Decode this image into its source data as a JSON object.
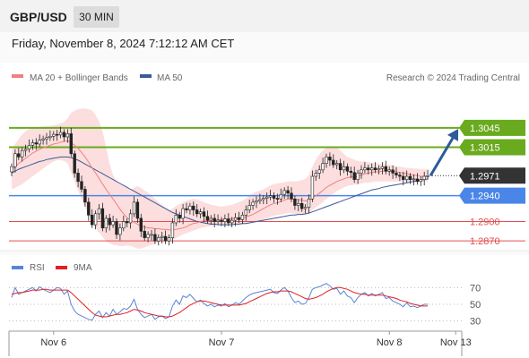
{
  "header": {
    "symbol": "GBP/USD",
    "interval": "30 MIN"
  },
  "timestamp": "Friday, November 8, 2024 7:12:12 AM CET",
  "credit": "Research © 2024 Trading Central",
  "colors": {
    "ma20": "#f08080",
    "ma50": "#3a5a98",
    "green": "#6aaa1e",
    "blue_level": "#4a86e8",
    "red_level": "#e05050",
    "band": "#fbd3d3",
    "arrow": "#2e5a9a",
    "rsi": "#5b84d6",
    "rsi_ma": "#e02020"
  },
  "chart_data": [
    {
      "type": "candlestick",
      "legend": [
        {
          "name": "MA 20 + Bollinger Bands",
          "color": "#f08080"
        },
        {
          "name": "MA 50",
          "color": "#3a5a98"
        }
      ],
      "y_range": [
        1.2855,
        1.311
      ],
      "x_ticks": [
        {
          "label": "Nov 6",
          "x": 12
        },
        {
          "label": "Nov 7",
          "x": 60
        },
        {
          "label": "Nov 8",
          "x": 108
        },
        {
          "label": "Nov 13",
          "x": 127
        }
      ],
      "levels": [
        {
          "label": "1.3045",
          "value": 1.3045,
          "type": "resistance",
          "color": "#6aaa1e"
        },
        {
          "label": "1.3015",
          "value": 1.3015,
          "type": "resistance",
          "color": "#6aaa1e"
        },
        {
          "label": "1.2971",
          "value": 1.2971,
          "type": "current",
          "color": "#333333"
        },
        {
          "label": "1.2940",
          "value": 1.294,
          "type": "pivot",
          "color": "#4a86e8"
        },
        {
          "label": "1.2900",
          "value": 1.29,
          "type": "support",
          "color": "#e05050"
        },
        {
          "label": "1.2870",
          "value": 1.287,
          "type": "support",
          "color": "#e05050"
        }
      ],
      "closes": [
        1.2985,
        1.3005,
        1.3,
        1.301,
        1.3012,
        1.3018,
        1.3022,
        1.302,
        1.3026,
        1.3028,
        1.303,
        1.3032,
        1.3035,
        1.3034,
        1.3038,
        1.3031,
        1.3036,
        1.3005,
        1.2975,
        1.2962,
        1.295,
        1.293,
        1.291,
        1.2895,
        1.2912,
        1.292,
        1.289,
        1.2905,
        1.2895,
        1.29,
        1.288,
        1.289,
        1.29,
        1.2898,
        1.2912,
        1.293,
        1.2905,
        1.2885,
        1.2875,
        1.288,
        1.288,
        1.287,
        1.2875,
        1.2877,
        1.287,
        1.2875,
        1.2898,
        1.291,
        1.2905,
        1.292,
        1.2918,
        1.2924,
        1.2918,
        1.2912,
        1.2915,
        1.2908,
        1.2902,
        1.2905,
        1.29,
        1.2902,
        1.29,
        1.2904,
        1.2898,
        1.2902,
        1.2906,
        1.2903,
        1.291,
        1.2918,
        1.2925,
        1.293,
        1.2932,
        1.2934,
        1.2936,
        1.2938,
        1.294,
        1.2936,
        1.2935,
        1.2942,
        1.2948,
        1.2944,
        1.2935,
        1.2925,
        1.2928,
        1.292,
        1.2922,
        1.2935,
        1.297,
        1.2975,
        1.298,
        1.299,
        1.3,
        1.2995,
        1.2988,
        1.299,
        1.298,
        1.2985,
        1.2978,
        1.2976,
        1.2965,
        1.2975,
        1.298,
        1.2983,
        1.298,
        1.2983,
        1.298,
        1.2982,
        1.2985,
        1.2978,
        1.298,
        1.2975,
        1.2972,
        1.297,
        1.2965,
        1.297,
        1.2965,
        1.2966,
        1.2962,
        1.2965,
        1.297,
        1.2971
      ],
      "ma20": [
        1.298,
        1.2985,
        1.299,
        1.2994,
        1.2998,
        1.3002,
        1.3006,
        1.3009,
        1.3012,
        1.3014,
        1.3016,
        1.3018,
        1.302,
        1.3021,
        1.3023,
        1.3024,
        1.3025,
        1.3022,
        1.3018,
        1.3013,
        1.3007,
        1.3,
        1.2992,
        1.2983,
        1.2975,
        1.2967,
        1.2958,
        1.295,
        1.2942,
        1.2935,
        1.2927,
        1.2919,
        1.2912,
        1.2906,
        1.2902,
        1.2899,
        1.2896,
        1.2893,
        1.2892,
        1.289,
        1.289,
        1.2889,
        1.2889,
        1.2888,
        1.2888,
        1.2887,
        1.2887,
        1.2888,
        1.2889,
        1.289,
        1.2892,
        1.2895,
        1.2897,
        1.2898,
        1.29,
        1.2901,
        1.2901,
        1.2902,
        1.2903,
        1.2903,
        1.2903,
        1.2904,
        1.2904,
        1.2905,
        1.2905,
        1.2905,
        1.2906,
        1.2907,
        1.2909,
        1.2911,
        1.2914,
        1.2917,
        1.292,
        1.2923,
        1.2926,
        1.2928,
        1.2929,
        1.2931,
        1.2933,
        1.2935,
        1.2935,
        1.2934,
        1.2934,
        1.2933,
        1.2932,
        1.2932,
        1.2936,
        1.294,
        1.2944,
        1.2948,
        1.2953,
        1.2956,
        1.2959,
        1.2962,
        1.2964,
        1.2966,
        1.2968,
        1.2969,
        1.2969,
        1.297,
        1.2972,
        1.2974,
        1.2975,
        1.2976,
        1.2977,
        1.2977,
        1.2978,
        1.2978,
        1.2978,
        1.2978,
        1.2977,
        1.2976,
        1.2975,
        1.2974,
        1.2973,
        1.2972,
        1.2971,
        1.297,
        1.297,
        1.297
      ],
      "upper": [
        1.301,
        1.302,
        1.3028,
        1.3035,
        1.304,
        1.3043,
        1.3045,
        1.3046,
        1.3047,
        1.3047,
        1.3048,
        1.3048,
        1.3049,
        1.305,
        1.3052,
        1.3054,
        1.306,
        1.3068,
        1.3072,
        1.3074,
        1.3075,
        1.3075,
        1.3074,
        1.3072,
        1.3065,
        1.3055,
        1.304,
        1.3015,
        1.299,
        1.2972,
        1.2962,
        1.2958,
        1.2955,
        1.2952,
        1.295,
        1.2952,
        1.2955,
        1.2952,
        1.2948,
        1.2945,
        1.294,
        1.2935,
        1.293,
        1.2926,
        1.2922,
        1.2918,
        1.292,
        1.2924,
        1.2927,
        1.293,
        1.2932,
        1.2934,
        1.2935,
        1.2934,
        1.2932,
        1.293,
        1.2928,
        1.2926,
        1.2925,
        1.2924,
        1.2923,
        1.2924,
        1.2925,
        1.2926,
        1.2928,
        1.293,
        1.2932,
        1.2936,
        1.294,
        1.2944,
        1.2946,
        1.2948,
        1.295,
        1.2953,
        1.2956,
        1.2958,
        1.2959,
        1.296,
        1.2961,
        1.2962,
        1.2962,
        1.2962,
        1.2963,
        1.2964,
        1.2966,
        1.2972,
        1.2985,
        1.2996,
        1.3004,
        1.301,
        1.3014,
        1.3016,
        1.3016,
        1.3015,
        1.301,
        1.3005,
        1.3,
        1.2998,
        1.2996,
        1.2994,
        1.2993,
        1.2993,
        1.2992,
        1.2991,
        1.299,
        1.299,
        1.2989,
        1.2988,
        1.2988,
        1.2987,
        1.2986,
        1.2985,
        1.2984,
        1.2983,
        1.2983,
        1.2982,
        1.2982,
        1.2981,
        1.2981,
        1.298
      ],
      "lower": [
        1.295,
        1.2952,
        1.2955,
        1.2958,
        1.2962,
        1.2966,
        1.297,
        1.2974,
        1.2978,
        1.2982,
        1.2986,
        1.299,
        1.2993,
        1.2995,
        1.2995,
        1.2994,
        1.299,
        1.2976,
        1.2962,
        1.2948,
        1.2935,
        1.2922,
        1.291,
        1.2898,
        1.289,
        1.2883,
        1.2876,
        1.287,
        1.2866,
        1.2864,
        1.2863,
        1.2862,
        1.2862,
        1.2863,
        1.2862,
        1.286,
        1.2858,
        1.2858,
        1.286,
        1.2862,
        1.2864,
        1.2866,
        1.2868,
        1.2869,
        1.287,
        1.2871,
        1.2872,
        1.2874,
        1.2877,
        1.288,
        1.2882,
        1.2884,
        1.2886,
        1.2888,
        1.289,
        1.2891,
        1.2892,
        1.2893,
        1.2894,
        1.2895,
        1.2895,
        1.2895,
        1.2895,
        1.2895,
        1.2895,
        1.2895,
        1.2896,
        1.2896,
        1.2897,
        1.2898,
        1.2899,
        1.2901,
        1.2903,
        1.2905,
        1.2907,
        1.2909,
        1.291,
        1.2911,
        1.2912,
        1.2913,
        1.2913,
        1.2912,
        1.2911,
        1.291,
        1.291,
        1.2912,
        1.2918,
        1.2922,
        1.2926,
        1.293,
        1.2935,
        1.2939,
        1.2943,
        1.2947,
        1.295,
        1.2953,
        1.2955,
        1.2956,
        1.2957,
        1.2958,
        1.2959,
        1.296,
        1.296,
        1.2961,
        1.2962,
        1.2962,
        1.2962,
        1.2962,
        1.2962,
        1.2962,
        1.2962,
        1.2962,
        1.2962,
        1.2962,
        1.2962,
        1.2962,
        1.2962,
        1.2962,
        1.2962,
        1.2962
      ],
      "ma50": [
        1.2975,
        1.2978,
        1.2981,
        1.2983,
        1.2985,
        1.2987,
        1.2989,
        1.2991,
        1.2993,
        1.2994,
        1.2996,
        1.2997,
        1.2998,
        1.2999,
        1.3,
        1.3,
        1.3,
        1.2999,
        1.2997,
        1.2995,
        1.2992,
        1.2989,
        1.2986,
        1.2983,
        1.298,
        1.2977,
        1.2974,
        1.2971,
        1.2968,
        1.2965,
        1.2962,
        1.2959,
        1.2956,
        1.2953,
        1.295,
        1.2947,
        1.2944,
        1.2941,
        1.2938,
        1.2935,
        1.2932,
        1.2929,
        1.2926,
        1.2923,
        1.292,
        1.2917,
        1.2914,
        1.2912,
        1.291,
        1.2908,
        1.2906,
        1.2904,
        1.2902,
        1.29,
        1.2899,
        1.2898,
        1.2897,
        1.2896,
        1.2896,
        1.2895,
        1.2895,
        1.2895,
        1.2895,
        1.2895,
        1.2896,
        1.2896,
        1.2897,
        1.2897,
        1.2898,
        1.2899,
        1.29,
        1.2901,
        1.2902,
        1.2903,
        1.2904,
        1.2905,
        1.2906,
        1.2907,
        1.2908,
        1.2909,
        1.291,
        1.291,
        1.2911,
        1.2911,
        1.2912,
        1.2913,
        1.2915,
        1.2917,
        1.2919,
        1.2921,
        1.2923,
        1.2925,
        1.2927,
        1.2929,
        1.2931,
        1.2933,
        1.2935,
        1.2937,
        1.2939,
        1.2941,
        1.2943,
        1.2945,
        1.2947,
        1.2949,
        1.295,
        1.2951,
        1.2953,
        1.2954,
        1.2955,
        1.2956,
        1.2957,
        1.2958,
        1.2959,
        1.296,
        1.2961,
        1.2962,
        1.2963,
        1.2964,
        1.2965,
        1.2966
      ],
      "projection": {
        "from_value": 1.2971,
        "to_value": 1.3045
      }
    },
    {
      "type": "line",
      "legend": [
        {
          "name": "RSI",
          "color": "#5b84d6"
        },
        {
          "name": "9MA",
          "color": "#e02020"
        }
      ],
      "y_range": [
        20,
        80
      ],
      "y_ticks": [
        30,
        50,
        70
      ],
      "rsi": [
        58,
        70,
        62,
        64,
        66,
        68,
        70,
        66,
        71,
        68,
        66,
        64,
        67,
        70,
        69,
        62,
        66,
        50,
        42,
        38,
        36,
        34,
        32,
        31,
        38,
        42,
        34,
        40,
        36,
        44,
        38,
        41,
        45,
        44,
        48,
        56,
        44,
        38,
        34,
        36,
        38,
        32,
        35,
        36,
        33,
        35,
        48,
        55,
        50,
        60,
        58,
        62,
        57,
        53,
        55,
        51,
        48,
        50,
        47,
        49,
        48,
        51,
        47,
        49,
        52,
        50,
        54,
        58,
        61,
        63,
        64,
        65,
        66,
        67,
        68,
        64,
        63,
        67,
        70,
        66,
        58,
        52,
        54,
        50,
        51,
        58,
        68,
        70,
        71,
        73,
        75,
        72,
        68,
        69,
        62,
        66,
        60,
        58,
        52,
        58,
        62,
        64,
        60,
        63,
        60,
        62,
        64,
        57,
        58,
        54,
        52,
        50,
        47,
        52,
        47,
        48,
        46,
        48,
        50,
        50
      ],
      "ma9": [
        62,
        63,
        64,
        64,
        65,
        66,
        67,
        67,
        67,
        68,
        68,
        67,
        67,
        67,
        67,
        67,
        67,
        64,
        60,
        56,
        52,
        48,
        44,
        40,
        37,
        36,
        35,
        35,
        36,
        37,
        38,
        38,
        39,
        40,
        42,
        44,
        43,
        42,
        40,
        39,
        38,
        37,
        36,
        36,
        35,
        35,
        36,
        38,
        40,
        43,
        46,
        49,
        51,
        53,
        54,
        54,
        53,
        52,
        51,
        50,
        49,
        49,
        49,
        49,
        49,
        49,
        50,
        51,
        53,
        55,
        57,
        59,
        61,
        63,
        64,
        65,
        65,
        66,
        66,
        66,
        65,
        63,
        61,
        59,
        57,
        56,
        57,
        58,
        60,
        62,
        65,
        67,
        69,
        70,
        70,
        69,
        68,
        66,
        64,
        63,
        62,
        62,
        61,
        61,
        61,
        61,
        61,
        60,
        59,
        58,
        57,
        55,
        54,
        53,
        51,
        50,
        49,
        48,
        48,
        48
      ]
    }
  ]
}
